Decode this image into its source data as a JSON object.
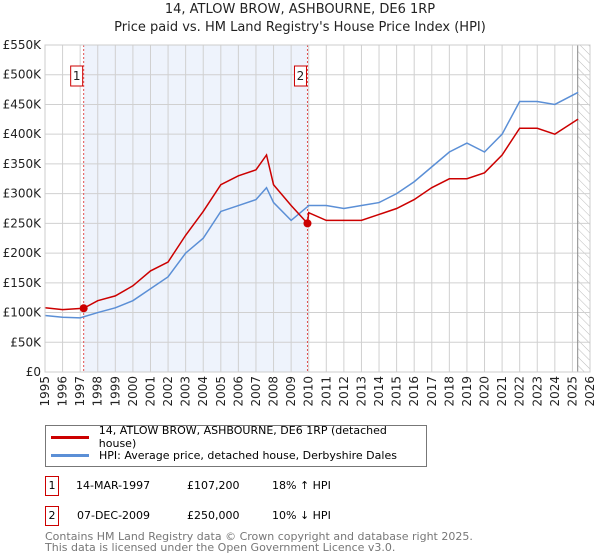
{
  "title": "14, ATLOW BROW, ASHBOURNE, DE6 1RP",
  "subtitle": "Price paid vs. HM Land Registry's House Price Index (HPI)",
  "chart_data": {
    "type": "line",
    "ylim": [
      0,
      550000
    ],
    "xlim": [
      1995,
      2026
    ],
    "yticks": [
      {
        "v": 0,
        "l": "£0"
      },
      {
        "v": 50000,
        "l": "£50K"
      },
      {
        "v": 100000,
        "l": "£100K"
      },
      {
        "v": 150000,
        "l": "£150K"
      },
      {
        "v": 200000,
        "l": "£200K"
      },
      {
        "v": 250000,
        "l": "£250K"
      },
      {
        "v": 300000,
        "l": "£300K"
      },
      {
        "v": 350000,
        "l": "£350K"
      },
      {
        "v": 400000,
        "l": "£400K"
      },
      {
        "v": 450000,
        "l": "£450K"
      },
      {
        "v": 500000,
        "l": "£500K"
      },
      {
        "v": 550000,
        "l": "£550K"
      }
    ],
    "xticks": [
      "1995",
      "1996",
      "1997",
      "1998",
      "1999",
      "2000",
      "2001",
      "2002",
      "2003",
      "2004",
      "2005",
      "2006",
      "2007",
      "2008",
      "2009",
      "2010",
      "2011",
      "2012",
      "2013",
      "2014",
      "2015",
      "2016",
      "2017",
      "2018",
      "2019",
      "2020",
      "2021",
      "2022",
      "2023",
      "2024",
      "2025",
      "2026"
    ],
    "series": [
      {
        "name": "14, ATLOW BROW, ASHBOURNE, DE6 1RP (detached house)",
        "color": "#cc0000",
        "x": [
          1995,
          1996,
          1997.2,
          1998,
          1999,
          2000,
          2001,
          2002,
          2003,
          2004,
          2005,
          2006,
          2007,
          2007.6,
          2008,
          2009,
          2009.93,
          2010,
          2011,
          2012,
          2013,
          2014,
          2015,
          2016,
          2017,
          2018,
          2019,
          2020,
          2021,
          2022,
          2023,
          2024,
          2025.3
        ],
        "y": [
          108000,
          105000,
          107200,
          120000,
          128000,
          145000,
          170000,
          185000,
          230000,
          270000,
          315000,
          330000,
          340000,
          365000,
          315000,
          280000,
          250000,
          268000,
          255000,
          255000,
          255000,
          265000,
          275000,
          290000,
          310000,
          325000,
          325000,
          335000,
          365000,
          410000,
          410000,
          400000,
          425000
        ]
      },
      {
        "name": "HPI: Average price, detached house, Derbyshire Dales",
        "color": "#5b8fd6",
        "x": [
          1995,
          1996,
          1997,
          1998,
          1999,
          2000,
          2001,
          2002,
          2003,
          2004,
          2005,
          2006,
          2007,
          2007.6,
          2008,
          2009,
          2009.93,
          2010,
          2011,
          2012,
          2013,
          2014,
          2015,
          2016,
          2017,
          2018,
          2019,
          2020,
          2021,
          2022,
          2023,
          2024,
          2025.3
        ],
        "y": [
          95000,
          92000,
          91000,
          100000,
          108000,
          120000,
          140000,
          160000,
          200000,
          225000,
          270000,
          280000,
          290000,
          310000,
          285000,
          255000,
          278000,
          280000,
          280000,
          275000,
          280000,
          285000,
          300000,
          320000,
          345000,
          370000,
          385000,
          370000,
          400000,
          455000,
          455000,
          450000,
          470000
        ]
      }
    ],
    "sales": [
      {
        "label": "1",
        "x": 1997.2,
        "y": 107200,
        "date": "14-MAR-1997",
        "price": "£107,200",
        "hpi": "18% ↑ HPI"
      },
      {
        "label": "2",
        "x": 2009.93,
        "y": 250000,
        "date": "07-DEC-2009",
        "price": "£250,000",
        "hpi": "10% ↓ HPI"
      }
    ],
    "shaded_range": [
      1997.2,
      2009.93
    ],
    "hatched_from": 2025.3
  },
  "footer": [
    "Contains HM Land Registry data © Crown copyright and database right 2025.",
    "This data is licensed under the Open Government Licence v3.0."
  ]
}
